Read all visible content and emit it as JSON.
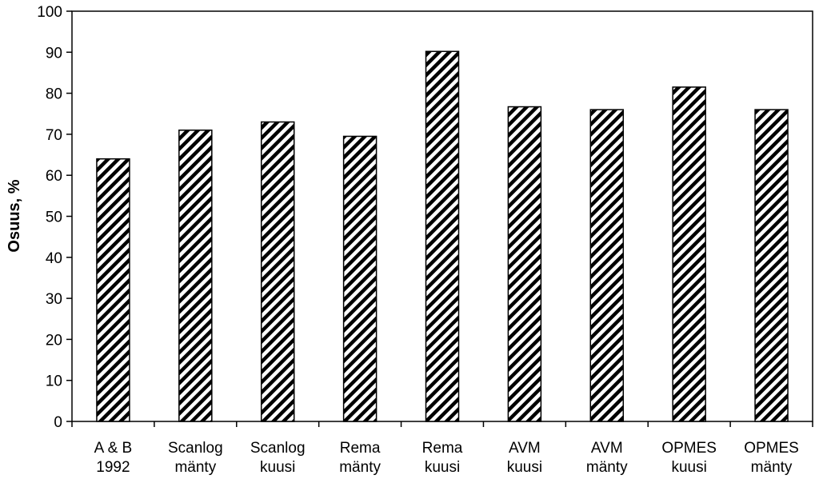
{
  "chart_data": {
    "type": "bar",
    "categories": [
      [
        "A & B",
        "1992"
      ],
      [
        "Scanlog",
        "mänty"
      ],
      [
        "Scanlog",
        "kuusi"
      ],
      [
        "Rema",
        "mänty"
      ],
      [
        "Rema",
        "kuusi"
      ],
      [
        "AVM",
        "kuusi"
      ],
      [
        "AVM",
        "mänty"
      ],
      [
        "OPMES",
        "kuusi"
      ],
      [
        "OPMES",
        "mänty"
      ]
    ],
    "values": [
      64,
      71,
      73,
      69.5,
      90.2,
      76.7,
      76,
      81.5,
      76
    ],
    "ylabel": "Osuus, %",
    "ylim": [
      0,
      100
    ],
    "yticks": [
      0,
      10,
      20,
      30,
      40,
      50,
      60,
      70,
      80,
      90,
      100
    ],
    "grid": false,
    "bar_fill": "diagonal-hatch",
    "bar_color": "#000000"
  }
}
